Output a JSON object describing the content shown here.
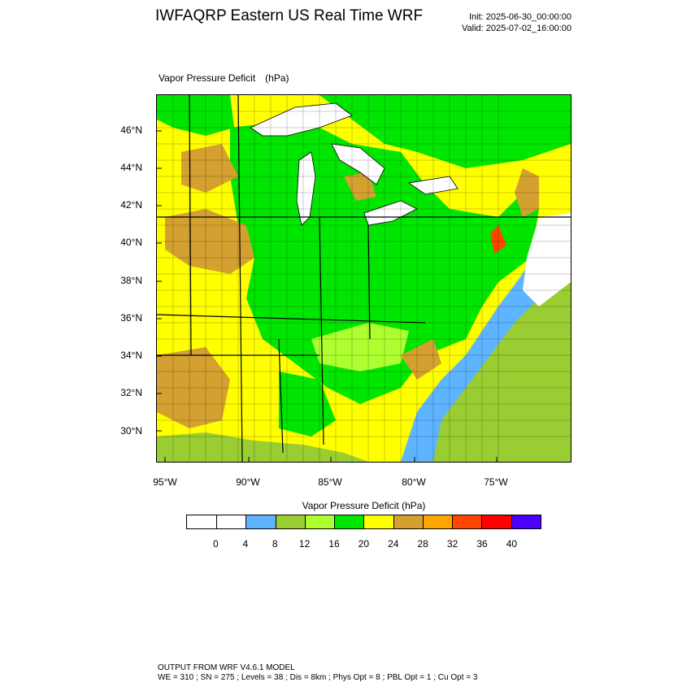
{
  "header": {
    "title": "IWFAQRP Eastern US Real Time WRF",
    "init": "Init: 2025-06-30_00:00:00",
    "valid": "Valid: 2025-07-02_16:00:00"
  },
  "plot": {
    "field_label": "Vapor Pressure Deficit",
    "field_units": "(hPa)",
    "lat_labels": [
      "46°N",
      "44°N",
      "42°N",
      "40°N",
      "38°N",
      "36°N",
      "34°N",
      "32°N",
      "30°N"
    ],
    "lon_labels": [
      "95°W",
      "90°W",
      "85°W",
      "80°W",
      "75°W"
    ]
  },
  "colorbar": {
    "title": "Vapor Pressure Deficit   (hPa)",
    "colors": [
      "#ffffff",
      "#ffffff",
      "#5fb4ff",
      "#9acd32",
      "#adff2f",
      "#00e600",
      "#ffff00",
      "#d4a030",
      "#ffa500",
      "#ff4500",
      "#ff0000",
      "#4b00ff"
    ],
    "labels": [
      "0",
      "4",
      "8",
      "12",
      "16",
      "20",
      "24",
      "28",
      "32",
      "36",
      "40"
    ]
  },
  "legend_colors": {
    "water": "#ffffff",
    "ocean_low": "#5fb4ff",
    "land_fill": "#9acd32"
  },
  "footer": {
    "line1": "OUTPUT FROM WRF V4.6.1 MODEL",
    "line2": "WE = 310 ; SN = 275 ; Levels = 38 ; Dis = 8km ; Phys Opt = 8 ; PBL Opt = 1 ; Cu Opt = 3"
  }
}
